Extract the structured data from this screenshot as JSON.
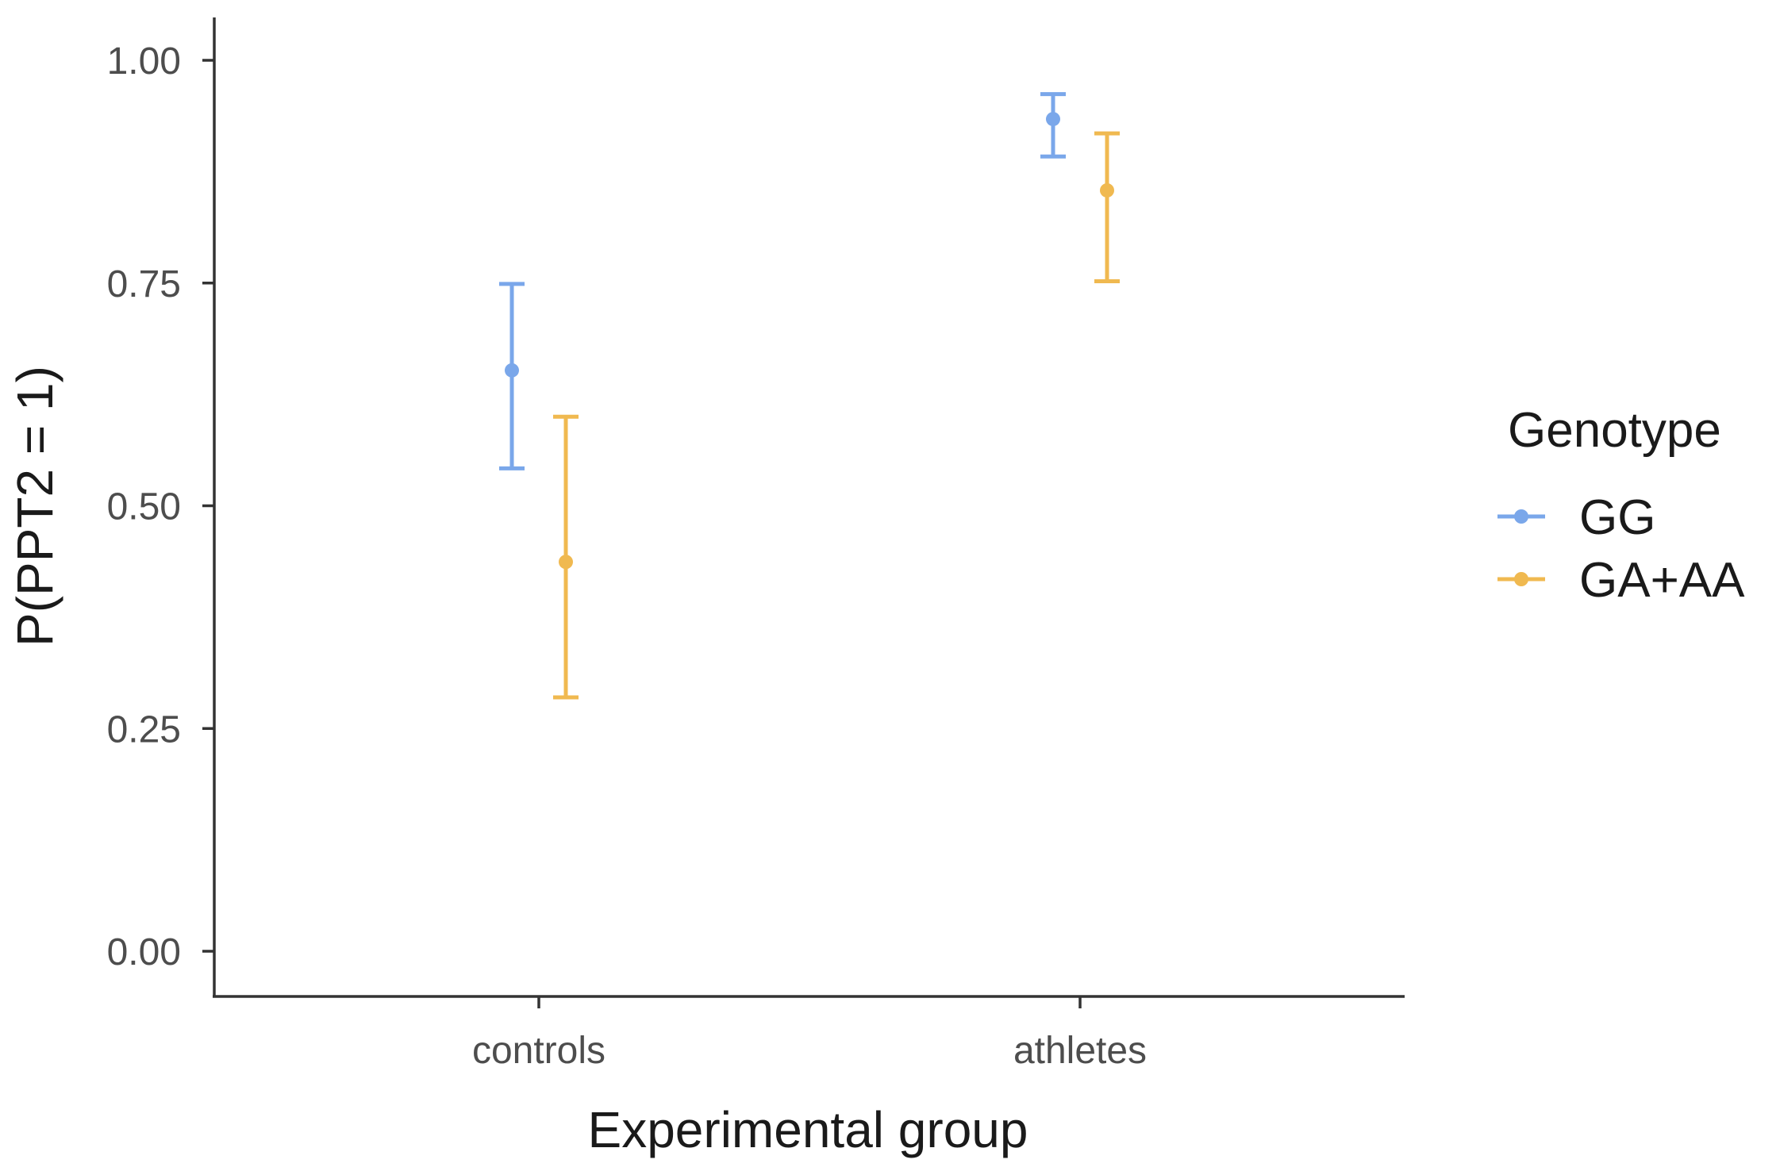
{
  "chart_data": {
    "type": "pointrange",
    "xlabel": "Experimental group",
    "ylabel": "P(PPT2 = 1)",
    "categories": [
      "controls",
      "athletes"
    ],
    "ylim": [
      -0.05,
      1.05
    ],
    "yticks": [
      0.0,
      0.25,
      0.5,
      0.75,
      1.0
    ],
    "ytick_labels": [
      "0.00",
      "0.25",
      "0.50",
      "0.75",
      "1.00"
    ],
    "grid": false,
    "legend": {
      "title": "Genotype",
      "position": "right"
    },
    "series": [
      {
        "name": "GG",
        "color": "#7aa7ea",
        "values": [
          0.652,
          0.934
        ],
        "lower": [
          0.542,
          0.892
        ],
        "upper": [
          0.749,
          0.962
        ]
      },
      {
        "name": "GA+AA",
        "color": "#f0b950",
        "values": [
          0.437,
          0.854
        ],
        "lower": [
          0.285,
          0.752
        ],
        "upper": [
          0.6,
          0.918
        ]
      }
    ]
  }
}
